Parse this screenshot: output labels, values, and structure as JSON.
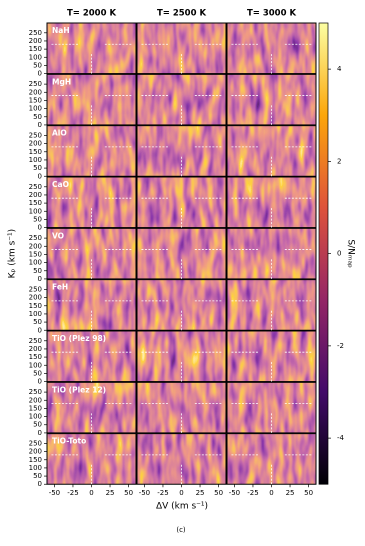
{
  "chart_data": {
    "type": "heatmap",
    "columns": [
      "T= 2000 K",
      "T= 2500 K",
      "T= 3000 K"
    ],
    "rows": [
      "NaH",
      "MgH",
      "AlO",
      "CaO",
      "VO",
      "FeH",
      "TiO (Plez 98)",
      "TiO (Plez 12)",
      "TiO-Toto"
    ],
    "xlim": [
      -60,
      60
    ],
    "xticks": [
      -50,
      -25,
      0,
      25,
      50
    ],
    "ylim": [
      0,
      310
    ],
    "yticks": [
      0,
      50,
      100,
      150,
      200,
      250
    ],
    "xlabel": "ΔV (km s⁻¹)",
    "ylabel": "Kₚ (km s⁻¹)",
    "marker": {
      "x": 0,
      "y": 180
    },
    "colorbar": {
      "label": "S/Nₘₐₚ",
      "lim": [
        -5,
        5
      ],
      "ticks": [
        -4,
        -2,
        0,
        2,
        4
      ],
      "colormap": "inferno"
    },
    "caption": "(c)"
  }
}
